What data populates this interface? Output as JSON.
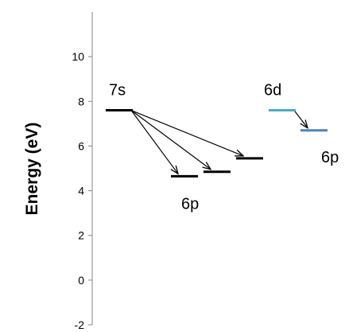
{
  "chart_data": {
    "type": "energy-level-diagram",
    "ylabel": "Energy (eV)",
    "ylim": [
      -2,
      12
    ],
    "yticks": [
      -2,
      0,
      2,
      4,
      6,
      8,
      10
    ],
    "grid": false,
    "levels": [
      {
        "id": "7s",
        "energy": 7.6,
        "column": 0,
        "color": "#000000"
      },
      {
        "id": "6p-a",
        "energy": 4.65,
        "column": 1,
        "color": "#000000"
      },
      {
        "id": "6p-b",
        "energy": 4.85,
        "column": 2,
        "color": "#000000"
      },
      {
        "id": "6p-c",
        "energy": 5.45,
        "column": 3,
        "color": "#000000"
      },
      {
        "id": "6d",
        "energy": 7.6,
        "column": 4,
        "color": "#4bacc6"
      },
      {
        "id": "6p-r",
        "energy": 6.7,
        "column": 5,
        "color": "#4f81bd"
      }
    ],
    "transitions": [
      {
        "from": "7s",
        "to": "6p-a"
      },
      {
        "from": "7s",
        "to": "6p-b"
      },
      {
        "from": "7s",
        "to": "6p-c"
      },
      {
        "from": "6d",
        "to": "6p-r"
      }
    ],
    "labels": [
      {
        "text": "7s",
        "near": "7s"
      },
      {
        "text": "6p",
        "near": "6p-a"
      },
      {
        "text": "6d",
        "near": "6d"
      },
      {
        "text": "6p",
        "near": "6p-r"
      }
    ]
  }
}
